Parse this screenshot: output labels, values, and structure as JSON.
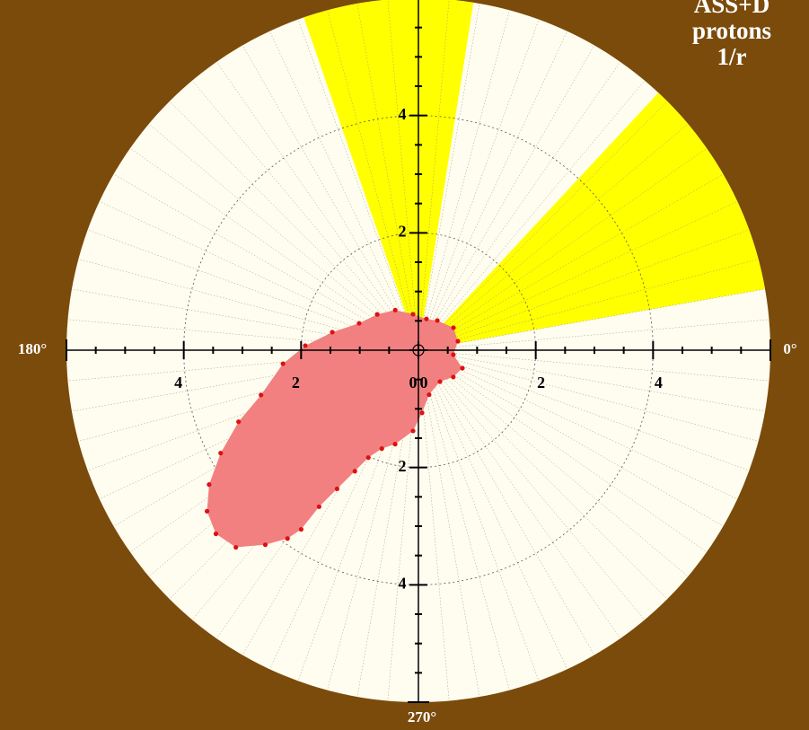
{
  "chart_data": {
    "type": "polar",
    "rlim": [
      0,
      6
    ],
    "rticks": [
      0,
      2,
      4
    ],
    "rminorticks": [
      0.5,
      1,
      1.5,
      2.5,
      3,
      3.5,
      4.5,
      5,
      5.5
    ],
    "angle_labels": [
      {
        "value": 180,
        "label": "180°"
      },
      {
        "value": 0,
        "label": "0°"
      },
      {
        "value": 270,
        "label": "270°"
      }
    ],
    "annotations": [
      "ASS+D",
      "protons",
      "1/r"
    ],
    "sectors": [
      {
        "theta": [
          10,
          47
        ],
        "color": "#ffff00"
      },
      {
        "theta": [
          81,
          109
        ],
        "color": "#ffff00"
      }
    ],
    "series": [
      {
        "color": "#dd1111",
        "fill": "#f28080",
        "theta": [
          57.5,
          32.7,
          12.8,
          352.7,
          337.8,
          322.4,
          304.4,
          283.5,
          273.3,
          266.2,
          256.1,
          249.6,
          245.0,
          242.3,
          239.6,
          237.6,
          236.8,
          235.2,
          231.8,
          227.2,
          222.2,
          217.3,
          212.7,
          207.5,
          201.7,
          195.9,
          185.7,
          177.7,
          168.2,
          155.6,
          139.0,
          120.0,
          98.5,
          75.6
        ],
        "r": [
          0.6,
          0.71,
          0.69,
          0.6,
          0.81,
          0.75,
          0.65,
          0.78,
          1.07,
          1.38,
          1.65,
          1.79,
          2.02,
          2.33,
          2.74,
          3.16,
          3.65,
          3.91,
          4.22,
          4.58,
          4.66,
          4.53,
          4.24,
          3.8,
          3.3,
          2.79,
          2.32,
          1.93,
          1.5,
          1.11,
          0.93,
          0.79,
          0.62,
          0.55
        ]
      }
    ],
    "background": "#7b4b0b",
    "disk_color": "#fffdf0"
  }
}
